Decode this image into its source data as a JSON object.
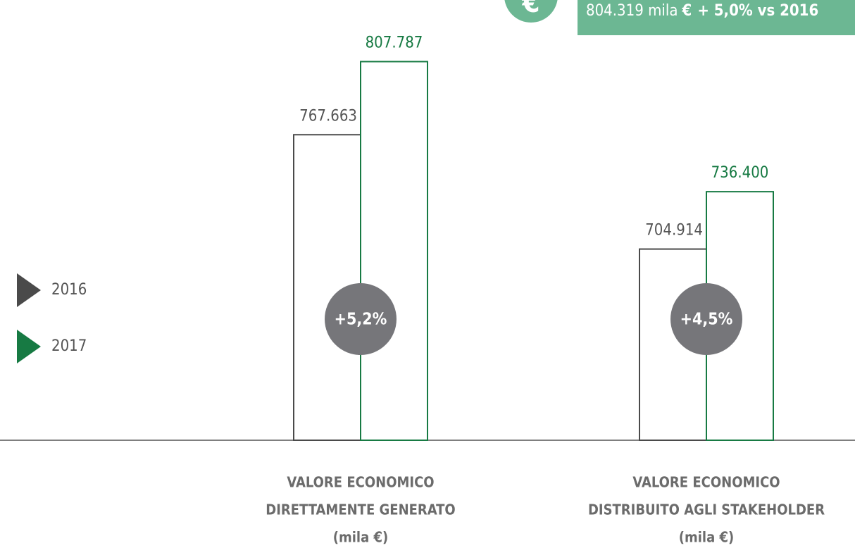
{
  "chart_data": {
    "type": "bar",
    "categories": [
      [
        "VALORE ECONOMICO",
        "DIRETTAMENTE GENERATO",
        "(mila €)"
      ],
      [
        "VALORE ECONOMICO",
        "DISTRIBUITO AGLI STAKEHOLDER",
        "(mila €)"
      ]
    ],
    "series": [
      {
        "name": "2016",
        "color": "#4a4a4a",
        "values": [
          767663,
          704914
        ],
        "value_labels": [
          "767.663",
          "704.914"
        ]
      },
      {
        "name": "2017",
        "color": "#177a43",
        "values": [
          807787,
          736400
        ],
        "value_labels": [
          "807.787",
          "736.400"
        ]
      }
    ],
    "growth": {
      "values": [
        5.2,
        4.5
      ],
      "value_labels": [
        "+5,2%",
        "+4,5%"
      ],
      "color": "#76767a"
    },
    "highlight": {
      "icon": "€",
      "value": "804.319 mila",
      "unit": "€",
      "change": "+ 5,0% vs 2016",
      "color": "#6cb793"
    },
    "ylim": [
      600000,
      830000
    ]
  }
}
